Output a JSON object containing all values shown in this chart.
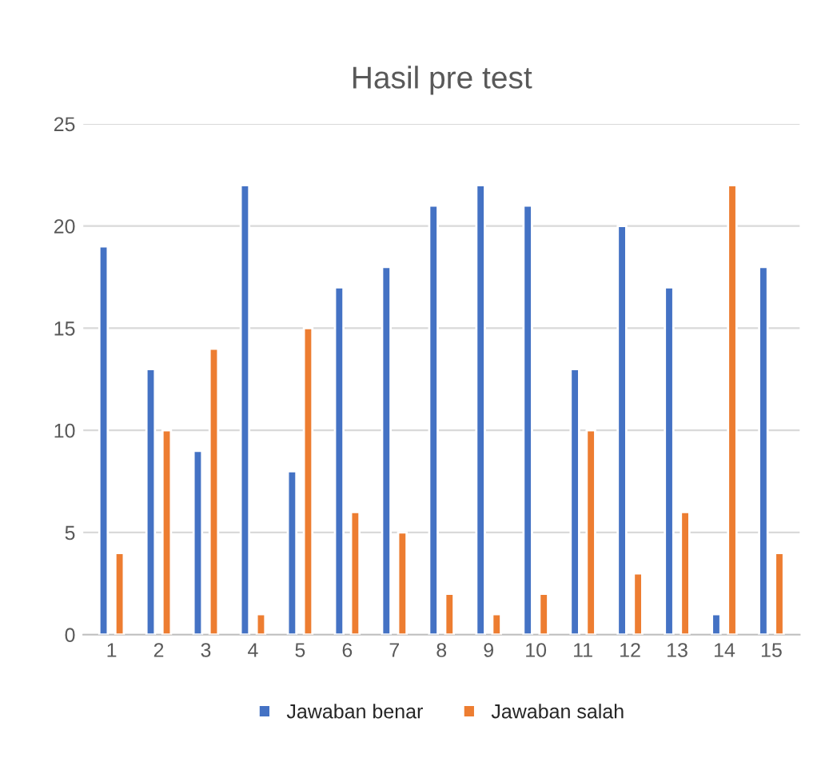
{
  "chart_data": {
    "type": "bar",
    "title": "Hasil pre test",
    "categories": [
      "1",
      "2",
      "3",
      "4",
      "5",
      "6",
      "7",
      "8",
      "9",
      "10",
      "11",
      "12",
      "13",
      "14",
      "15"
    ],
    "series": [
      {
        "name": "Jawaban benar",
        "color": "#4472c4",
        "values": [
          19,
          13,
          9,
          22,
          8,
          17,
          18,
          21,
          22,
          21,
          13,
          20,
          17,
          1,
          18
        ]
      },
      {
        "name": "Jawaban salah",
        "color": "#ed7d31",
        "values": [
          4,
          10,
          14,
          1,
          15,
          6,
          5,
          2,
          1,
          2,
          10,
          3,
          6,
          22,
          4
        ]
      }
    ],
    "ylim": [
      0,
      25
    ],
    "yticks": [
      0,
      5,
      10,
      15,
      20,
      25
    ],
    "grid": "y",
    "legend": "bottom"
  }
}
